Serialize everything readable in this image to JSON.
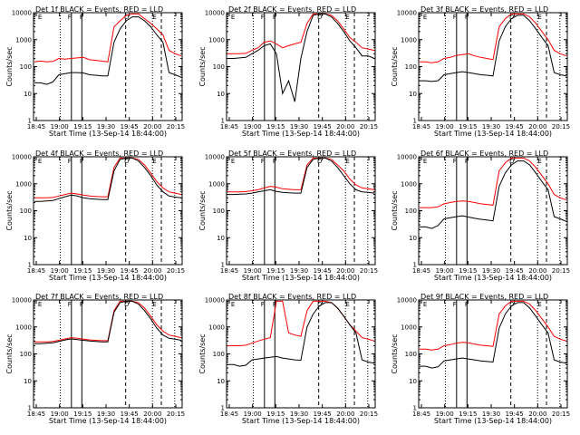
{
  "chart_data": [
    {
      "type": "line",
      "title": "Det 1f BLACK = Events, RED = LLD",
      "xlabel": "Start Time (13-Sep-14 18:44:00)",
      "ylabel": "Counts/sec",
      "y_scale": "log",
      "ylim": [
        1,
        10000
      ],
      "x_ticks": [
        "18:45",
        "19:00",
        "19:15",
        "19:30",
        "19:45",
        "20:00",
        "20:15"
      ],
      "y_ticks": [
        "1",
        "10",
        "100",
        "1000",
        "10000"
      ],
      "markers": [
        "E",
        "F",
        "F",
        "D",
        "E"
      ],
      "series": [
        {
          "color": "#ff0000",
          "values": [
            150,
            160,
            150,
            155,
            200,
            190,
            200,
            210,
            220,
            180,
            170,
            160,
            150,
            3000,
            5000,
            8000,
            9000,
            9000,
            6000,
            4000,
            2500,
            1500,
            400,
            300,
            250
          ]
        },
        {
          "color": "#000000",
          "values": [
            25,
            25,
            22,
            27,
            50,
            55,
            60,
            60,
            58,
            50,
            48,
            45,
            45,
            800,
            2500,
            5000,
            7000,
            7000,
            5000,
            3000,
            1500,
            800,
            60,
            50,
            40
          ]
        }
      ]
    },
    {
      "type": "line",
      "title": "Det 2f BLACK = Events, RED = LLD",
      "xlabel": "Start Time (13-Sep-14 18:44:00)",
      "ylabel": "Counts/sec",
      "y_scale": "log",
      "ylim": [
        1,
        10000
      ],
      "x_ticks": [
        "18:45",
        "19:00",
        "19:15",
        "19:30",
        "19:45",
        "20:00",
        "20:15"
      ],
      "y_ticks": [
        "1",
        "10",
        "100",
        "1000",
        "10000"
      ],
      "markers": [
        "E",
        "F",
        "F",
        "D",
        "E"
      ],
      "series": [
        {
          "color": "#ff0000",
          "values": [
            300,
            300,
            300,
            310,
            400,
            500,
            800,
            900,
            700,
            500,
            600,
            700,
            800,
            4000,
            9000,
            9000,
            9000,
            8000,
            5000,
            2500,
            1200,
            800,
            500,
            450,
            400
          ]
        },
        {
          "color": "#000000",
          "values": [
            200,
            200,
            210,
            220,
            300,
            400,
            600,
            700,
            300,
            10,
            30,
            5,
            200,
            2000,
            8000,
            9000,
            9000,
            7000,
            4000,
            2000,
            900,
            500,
            250,
            250,
            200
          ]
        }
      ]
    },
    {
      "type": "line",
      "title": "Det 3f BLACK = Events, RED = LLD",
      "xlabel": "Start Time (13-Sep-14 18:44:00)",
      "ylabel": "Counts/sec",
      "y_scale": "log",
      "ylim": [
        1,
        10000
      ],
      "x_ticks": [
        "18:45",
        "19:00",
        "19:15",
        "19:30",
        "19:45",
        "20:00",
        "20:15"
      ],
      "y_ticks": [
        "1",
        "10",
        "100",
        "1000",
        "10000"
      ],
      "markers": [
        "E",
        "F",
        "F",
        "D",
        "E"
      ],
      "series": [
        {
          "color": "#ff0000",
          "values": [
            150,
            150,
            140,
            150,
            200,
            220,
            260,
            280,
            300,
            250,
            220,
            200,
            180,
            3000,
            6000,
            9000,
            9000,
            9000,
            7000,
            4000,
            2000,
            1000,
            400,
            300,
            250
          ]
        },
        {
          "color": "#000000",
          "values": [
            30,
            30,
            28,
            30,
            50,
            55,
            60,
            65,
            60,
            55,
            50,
            48,
            45,
            900,
            3000,
            6000,
            8000,
            8000,
            5000,
            2500,
            1200,
            600,
            60,
            50,
            45
          ]
        }
      ]
    },
    {
      "type": "line",
      "title": "Det 4f BLACK = Events, RED = LLD",
      "xlabel": "Start Time (13-Sep-14 18:44:00)",
      "ylabel": "Counts/sec",
      "y_scale": "log",
      "ylim": [
        1,
        10000
      ],
      "x_ticks": [
        "18:45",
        "19:00",
        "19:15",
        "19:30",
        "19:45",
        "20:00",
        "20:15"
      ],
      "y_ticks": [
        "1",
        "10",
        "100",
        "1000",
        "10000"
      ],
      "markers": [
        "E",
        "F",
        "F",
        "D",
        "E"
      ],
      "series": [
        {
          "color": "#ff0000",
          "values": [
            300,
            300,
            300,
            310,
            350,
            400,
            450,
            420,
            380,
            350,
            340,
            330,
            330,
            4000,
            9000,
            9000,
            9000,
            8000,
            5000,
            2500,
            1200,
            700,
            500,
            450,
            400
          ]
        },
        {
          "color": "#000000",
          "values": [
            220,
            220,
            230,
            240,
            280,
            330,
            380,
            350,
            300,
            280,
            270,
            260,
            260,
            3000,
            8000,
            9000,
            9000,
            7000,
            4000,
            2000,
            900,
            500,
            350,
            320,
            300
          ]
        }
      ]
    },
    {
      "type": "line",
      "title": "Det 5f BLACK = Events, RED = LLD",
      "xlabel": "Start Time (13-Sep-14 18:44:00)",
      "ylabel": "Counts/sec",
      "y_scale": "log",
      "ylim": [
        1,
        10000
      ],
      "x_ticks": [
        "18:45",
        "19:00",
        "19:15",
        "19:30",
        "19:45",
        "20:00",
        "20:15"
      ],
      "y_ticks": [
        "1",
        "10",
        "100",
        "1000",
        "10000"
      ],
      "markers": [
        "E",
        "F",
        "F",
        "D",
        "E"
      ],
      "series": [
        {
          "color": "#ff0000",
          "values": [
            500,
            500,
            500,
            510,
            550,
            600,
            700,
            800,
            750,
            650,
            620,
            600,
            600,
            5000,
            9000,
            9000,
            9000,
            8000,
            5000,
            3000,
            1500,
            900,
            700,
            650,
            600
          ]
        },
        {
          "color": "#000000",
          "values": [
            400,
            400,
            410,
            420,
            450,
            500,
            550,
            600,
            520,
            480,
            460,
            450,
            450,
            4000,
            8000,
            9000,
            9000,
            7000,
            4000,
            2000,
            1000,
            600,
            500,
            480,
            450
          ]
        }
      ]
    },
    {
      "type": "line",
      "title": "Det 6f BLACK = Events, RED = LLD",
      "xlabel": "Start Time (13-Sep-14 18:44:00)",
      "ylabel": "Counts/sec",
      "y_scale": "log",
      "ylim": [
        1,
        10000
      ],
      "x_ticks": [
        "18:45",
        "19:00",
        "19:15",
        "19:30",
        "19:45",
        "20:00",
        "20:15"
      ],
      "y_ticks": [
        "1",
        "10",
        "100",
        "1000",
        "10000"
      ],
      "markers": [
        "E",
        "F",
        "F",
        "D",
        "E"
      ],
      "series": [
        {
          "color": "#ff0000",
          "values": [
            130,
            130,
            130,
            140,
            180,
            200,
            220,
            230,
            220,
            200,
            180,
            170,
            160,
            3000,
            6000,
            9000,
            9000,
            9000,
            7000,
            4000,
            2000,
            1000,
            400,
            300,
            250
          ]
        },
        {
          "color": "#000000",
          "values": [
            25,
            25,
            22,
            28,
            50,
            55,
            60,
            65,
            58,
            52,
            48,
            45,
            42,
            800,
            2500,
            5000,
            7000,
            7000,
            5000,
            2500,
            1200,
            600,
            60,
            50,
            40
          ]
        }
      ]
    },
    {
      "type": "line",
      "title": "Det 7f BLACK = Events, RED = LLD",
      "xlabel": "Start Time (13-Sep-14 18:44:00)",
      "ylabel": "Counts/sec",
      "y_scale": "log",
      "ylim": [
        1,
        10000
      ],
      "x_ticks": [
        "18:45",
        "19:00",
        "19:15",
        "19:30",
        "19:45",
        "20:00",
        "20:15"
      ],
      "y_ticks": [
        "1",
        "10",
        "100",
        "1000",
        "10000"
      ],
      "markers": [
        "E",
        "F",
        "F",
        "D",
        "E"
      ],
      "series": [
        {
          "color": "#ff0000",
          "values": [
            280,
            280,
            280,
            290,
            320,
            360,
            400,
            380,
            350,
            330,
            320,
            310,
            310,
            4000,
            9000,
            9000,
            9000,
            8000,
            5000,
            2500,
            1200,
            700,
            500,
            450,
            400
          ]
        },
        {
          "color": "#000000",
          "values": [
            240,
            240,
            250,
            260,
            290,
            330,
            360,
            340,
            320,
            300,
            290,
            280,
            280,
            3500,
            8000,
            9000,
            9000,
            7000,
            4000,
            2000,
            900,
            500,
            380,
            350,
            320
          ]
        }
      ]
    },
    {
      "type": "line",
      "title": "Det 8f BLACK = Events, RED = LLD",
      "xlabel": "Start Time (13-Sep-14 18:44:00)",
      "ylabel": "Counts/sec",
      "y_scale": "log",
      "ylim": [
        1,
        10000
      ],
      "x_ticks": [
        "18:45",
        "19:00",
        "19:15",
        "19:30",
        "19:45",
        "20:00",
        "20:15"
      ],
      "y_ticks": [
        "1",
        "10",
        "100",
        "1000",
        "10000"
      ],
      "markers": [
        "E",
        "F",
        "F",
        "D",
        "E"
      ],
      "series": [
        {
          "color": "#ff0000",
          "values": [
            200,
            200,
            200,
            210,
            250,
            300,
            350,
            400,
            9000,
            9000,
            600,
            500,
            450,
            4000,
            9000,
            9000,
            9000,
            8000,
            5000,
            2500,
            1200,
            700,
            400,
            350,
            300
          ]
        },
        {
          "color": "#000000",
          "values": [
            40,
            40,
            35,
            38,
            60,
            65,
            70,
            75,
            80,
            70,
            65,
            60,
            58,
            1000,
            3000,
            6000,
            8000,
            8000,
            5000,
            2500,
            1200,
            600,
            60,
            50,
            45
          ]
        }
      ]
    },
    {
      "type": "line",
      "title": "Det 9f BLACK = Events, RED = LLD",
      "xlabel": "Start Time (13-Sep-14 18:44:00)",
      "ylabel": "Counts/sec",
      "y_scale": "log",
      "ylim": [
        1,
        10000
      ],
      "x_ticks": [
        "18:45",
        "19:00",
        "19:15",
        "19:30",
        "19:45",
        "20:00",
        "20:15"
      ],
      "y_ticks": [
        "1",
        "10",
        "100",
        "1000",
        "10000"
      ],
      "markers": [
        "E",
        "F",
        "F",
        "D",
        "E"
      ],
      "series": [
        {
          "color": "#ff0000",
          "values": [
            150,
            150,
            140,
            150,
            200,
            220,
            250,
            270,
            260,
            230,
            210,
            200,
            190,
            3000,
            6000,
            9000,
            9000,
            9000,
            7000,
            4000,
            2000,
            1000,
            450,
            350,
            300
          ]
        },
        {
          "color": "#000000",
          "values": [
            35,
            35,
            30,
            33,
            55,
            60,
            65,
            70,
            65,
            60,
            55,
            52,
            50,
            900,
            3000,
            6000,
            8000,
            8000,
            5000,
            2500,
            1200,
            600,
            60,
            50,
            45
          ]
        }
      ]
    }
  ]
}
